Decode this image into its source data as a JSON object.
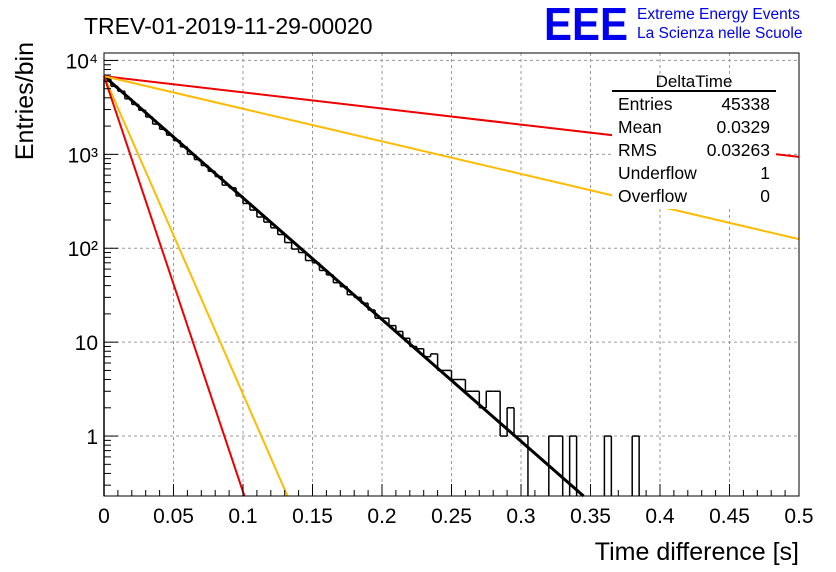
{
  "title": "TREV-01-2019-11-29-00020",
  "logo": {
    "mark": "EEE",
    "line1": "Extreme Energy Events",
    "line2": "La Scienza nelle Scuole",
    "color": "#0000ee"
  },
  "stats": {
    "name": "DeltaTime",
    "rows": [
      {
        "label": "Entries",
        "value": "45338"
      },
      {
        "label": "Mean",
        "value": "0.0329"
      },
      {
        "label": "RMS",
        "value": "0.03263"
      },
      {
        "label": "Underflow",
        "value": "1"
      },
      {
        "label": "Overflow",
        "value": "0"
      }
    ]
  },
  "chart_data": {
    "type": "line",
    "title": "TREV-01-2019-11-29-00020",
    "xlabel": "Time difference [s]",
    "ylabel": "Entries/bin",
    "xlim": [
      0,
      0.5
    ],
    "ylim": [
      0.23,
      12000
    ],
    "yscale": "log",
    "grid": true,
    "legend": "none",
    "x_ticks": [
      0,
      0.05,
      0.1,
      0.15,
      0.2,
      0.25,
      0.3,
      0.35,
      0.4,
      0.45,
      0.5
    ],
    "x_tick_labels": [
      "0",
      "0.05",
      "0.1",
      "0.15",
      "0.2",
      "0.25",
      "0.3",
      "0.35",
      "0.4",
      "0.45",
      "0.5"
    ],
    "y_ticks": [
      1,
      10,
      100,
      1000,
      10000
    ],
    "y_tick_labels": [
      "1",
      "10",
      "10²",
      "10³",
      "10⁴"
    ],
    "histogram": {
      "bin_width": 0.005,
      "color": "#000000",
      "counts": [
        6300,
        5300,
        4700,
        3900,
        3400,
        2950,
        2500,
        2100,
        1850,
        1600,
        1400,
        1200,
        1000,
        880,
        760,
        660,
        580,
        470,
        440,
        360,
        300,
        255,
        215,
        190,
        165,
        140,
        115,
        98,
        90,
        74,
        70,
        58,
        52,
        43,
        39,
        32,
        30,
        26,
        22,
        18,
        18,
        15,
        13,
        11,
        9,
        8.5,
        7,
        7.5,
        5,
        5,
        4,
        4,
        3,
        3,
        2,
        3,
        3,
        1,
        2,
        1,
        1,
        0,
        0,
        0,
        1,
        1,
        0,
        1,
        0,
        0,
        0,
        0,
        1,
        0,
        0,
        0,
        1,
        0,
        0,
        0,
        0,
        0,
        0,
        0,
        0,
        0,
        0,
        0,
        0,
        0,
        0,
        0,
        0,
        0,
        0,
        0,
        0,
        0,
        0,
        0
      ]
    },
    "series": [
      {
        "color": "#000000",
        "x": [
          0,
          0.345
        ],
        "y": [
          6800,
          0.23
        ]
      },
      {
        "color": "#ee0000",
        "x": [
          0,
          0.5
        ],
        "y": [
          6800,
          940
        ]
      },
      {
        "color": "#ffbb00",
        "x": [
          0,
          0.5
        ],
        "y": [
          6800,
          125
        ]
      },
      {
        "color": "#ffbb00",
        "x": [
          0,
          0.132
        ],
        "y": [
          6800,
          0.23
        ]
      },
      {
        "color": "#ee0000",
        "x": [
          0,
          0.101
        ],
        "y": [
          6800,
          0.23
        ]
      }
    ]
  }
}
